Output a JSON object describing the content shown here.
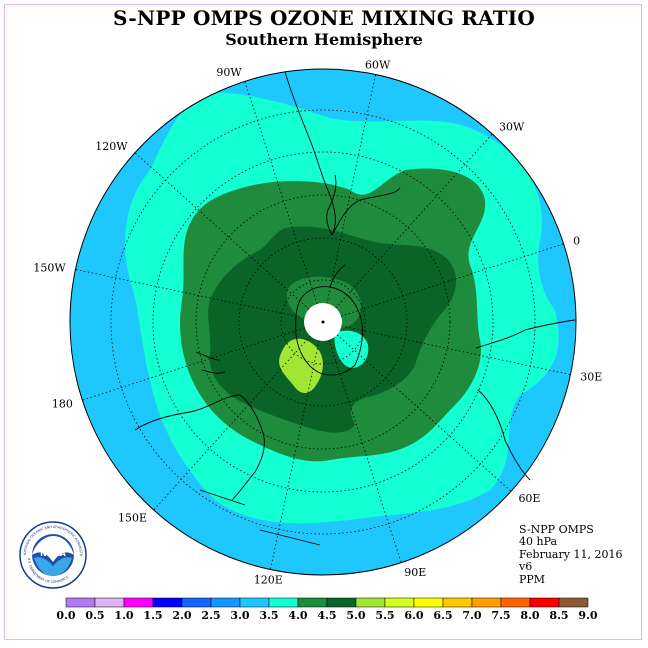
{
  "header": {
    "title": "S-NPP OMPS OZONE MIXING RATIO",
    "subtitle": "Southern Hemisphere"
  },
  "map": {
    "projection": "south-polar-stereographic",
    "longitude_labels": [
      "90W",
      "60W",
      "30W",
      "0",
      "30E",
      "60E",
      "90E",
      "120E",
      "150E",
      "180",
      "150W",
      "120W"
    ],
    "grid": "dotted",
    "pole_no_data_fill": "#ffffff",
    "ocean_color": "#1ec8ff",
    "regions": [
      {
        "range": "3.0-3.5",
        "color": "#1ec8ff"
      },
      {
        "range": "3.5-4.0",
        "color": "#14ffd2"
      },
      {
        "range": "4.0-4.5",
        "color": "#1e8c3c"
      },
      {
        "range": "4.5-5.0",
        "color": "#0a6428"
      },
      {
        "range": "5.0-5.5",
        "color": "#a0e632"
      }
    ]
  },
  "info": {
    "instrument": "S-NPP OMPS",
    "level": "40 hPa",
    "date": "February 11, 2016",
    "version": "v6",
    "units": "PPM"
  },
  "logo": {
    "text": "NOAA",
    "ring_text": "NATIONAL OCEANIC AND ATMOSPHERIC ADMINISTRATION",
    "bottom_text": "U.S. DEPARTMENT OF COMMERCE"
  },
  "colorbar": {
    "labels": [
      "0.0",
      "0.5",
      "1.0",
      "1.5",
      "2.0",
      "2.5",
      "3.0",
      "3.5",
      "4.0",
      "4.5",
      "5.0",
      "5.5",
      "6.0",
      "6.5",
      "7.0",
      "7.5",
      "8.0",
      "8.5",
      "9.0"
    ],
    "colors": [
      "#b478f0",
      "#dcb4f0",
      "#ff00ff",
      "#0000ff",
      "#1464ff",
      "#1496ff",
      "#1ec8ff",
      "#14ffd2",
      "#1e8c3c",
      "#0a6428",
      "#a0e632",
      "#d2ff1e",
      "#ffff00",
      "#ffc800",
      "#ffa000",
      "#ff6400",
      "#ff0000",
      "#8b5a3c"
    ]
  }
}
